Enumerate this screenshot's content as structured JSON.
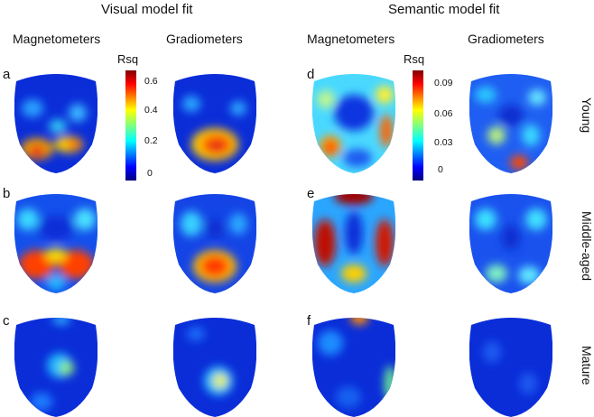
{
  "headers": {
    "visual": "Visual model fit",
    "semantic": "Semantic model fit"
  },
  "columns": {
    "v_mag": "Magnetometers",
    "v_grad": "Gradiometers",
    "s_mag": "Magnetometers",
    "s_grad": "Gradiometers"
  },
  "rows": {
    "young": "Young",
    "middle": "Middle-aged",
    "mature": "Mature"
  },
  "panels": {
    "a": "a",
    "b": "b",
    "c": "c",
    "d": "d",
    "e": "e",
    "f": "f"
  },
  "colorbars": {
    "visual": {
      "title": "Rsq",
      "ticks": [
        "0.6",
        "0.4",
        "0.2",
        "0"
      ],
      "colormap": "jet"
    },
    "semantic": {
      "title": "Rsq",
      "ticks": [
        "0.09",
        "0.06",
        "0.03",
        "0"
      ],
      "colormap": "jet"
    }
  }
}
